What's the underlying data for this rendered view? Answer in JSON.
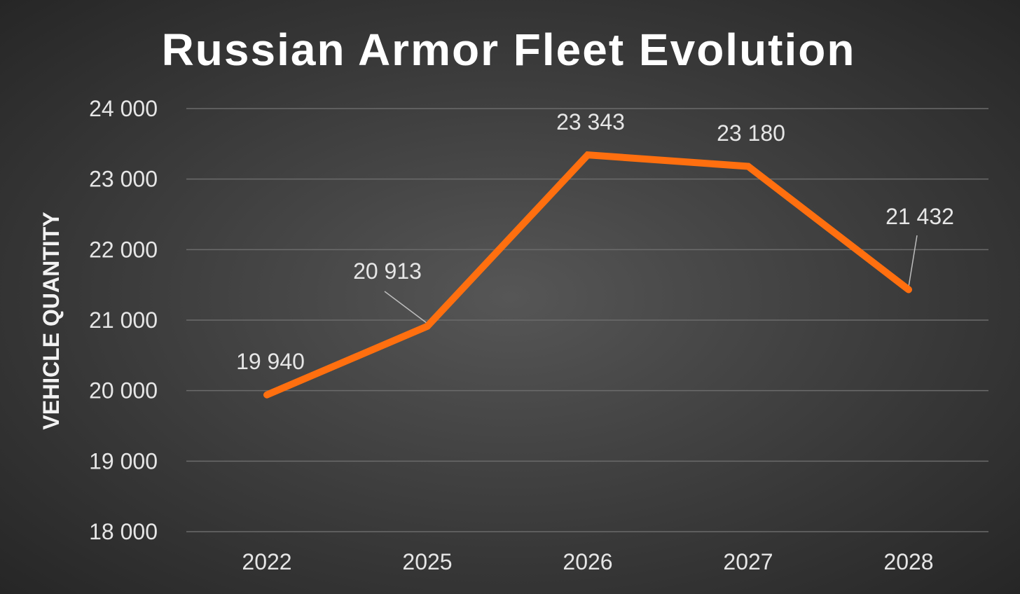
{
  "chart_data": {
    "type": "line",
    "title": "Russian Armor Fleet Evolution",
    "xlabel": "",
    "ylabel": "VEHICLE QUANTITY",
    "categories": [
      "2022",
      "2025",
      "2026",
      "2027",
      "2028"
    ],
    "series": [
      {
        "values": [
          19940,
          20913,
          23343,
          23180,
          21432
        ],
        "data_labels": [
          "19 940",
          "20 913",
          "23 343",
          "23 180",
          "21 432"
        ],
        "color": "#ff6f0f"
      }
    ],
    "ylim": [
      18000,
      24000
    ],
    "yticks": [
      18000,
      19000,
      20000,
      21000,
      22000,
      23000,
      24000
    ],
    "ytick_labels": [
      "18 000",
      "19 000",
      "20 000",
      "21 000",
      "22 000",
      "23 000",
      "24 000"
    ],
    "grid": true,
    "legend": "none"
  }
}
